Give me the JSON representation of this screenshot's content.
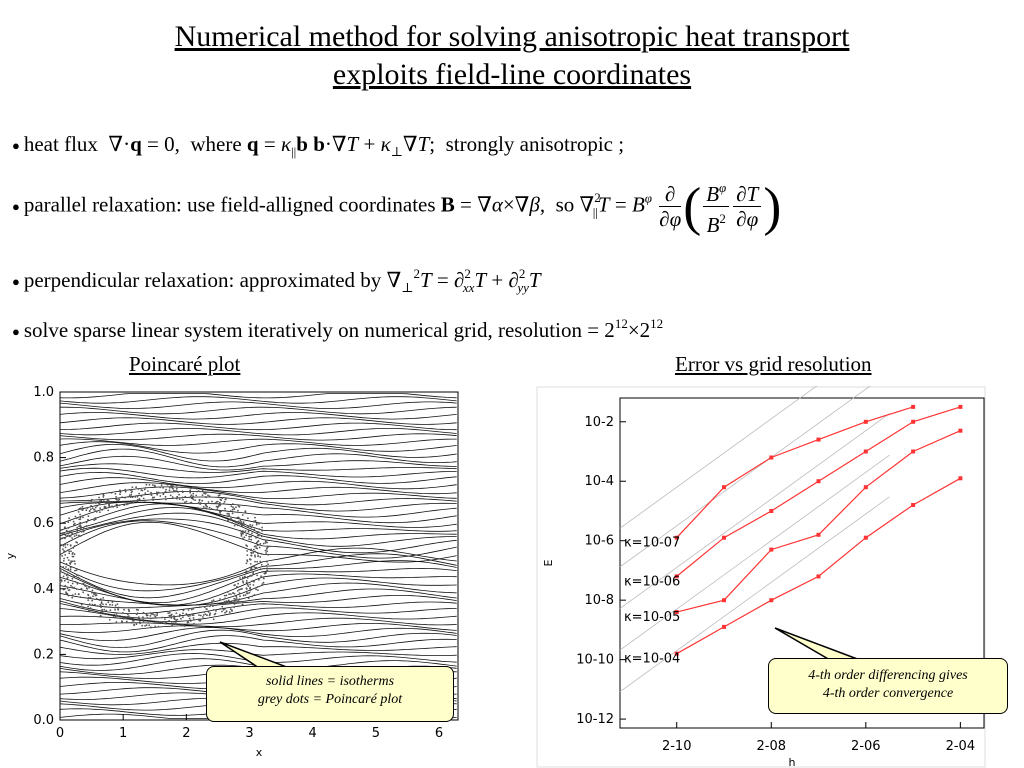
{
  "title": {
    "line1": "Numerical method for solving anisotropic heat transport",
    "line2": "exploits field-line coordinates"
  },
  "bullets": {
    "b1": {
      "text": "heat flux",
      "where": "where",
      "tail": "strongly anisotropic ;"
    },
    "b2": {
      "text": "parallel relaxation: use field-alligned coordinates",
      "so": "so"
    },
    "b3": {
      "text": "perpendicular relaxation: approximated by"
    },
    "b4": {
      "text": "solve sparse linear system iteratively on numerical grid, resolution = 2",
      "exp1": "12",
      "times": "×2",
      "exp2": "12"
    }
  },
  "captions": {
    "left": "Poincaré plot",
    "right": "Error vs grid resolution"
  },
  "callouts": {
    "left": [
      "solid lines = isotherms",
      "grey dots = Poincaré  plot"
    ],
    "right": [
      "4-th order differencing gives",
      "4-th order convergence"
    ]
  },
  "chart_data": [
    {
      "type": "line",
      "title": "",
      "xlabel": "x",
      "ylabel": "y",
      "xlim": [
        0,
        6.3
      ],
      "ylim": [
        0,
        1.0
      ],
      "xticks": [
        "0",
        "1",
        "2",
        "3",
        "4",
        "5",
        "6"
      ],
      "yticks": [
        "0.0",
        "0.2",
        "0.4",
        "0.6",
        "0.8",
        "1.0"
      ]
    },
    {
      "type": "line",
      "title": "",
      "xlabel": "h",
      "ylabel": "E",
      "x_scale": "log2",
      "y_scale": "log10",
      "xticks": [
        "2^-10",
        "2^-08",
        "2^-06",
        "2^-04"
      ],
      "yticks": [
        "10^-2",
        "10^-4",
        "10^-6",
        "10^-8",
        "10^-10",
        "10^-12"
      ],
      "x": [
        -10,
        -9,
        -8,
        -7,
        -6,
        -5
      ],
      "series": [
        {
          "name": "κ=10^-07",
          "x": [
            -10,
            -9,
            -8,
            -7,
            -6,
            -5
          ],
          "log10E": [
            -5.9,
            -4.2,
            -3.2,
            -2.6,
            -2.0,
            -1.5
          ]
        },
        {
          "name": "κ=10^-06",
          "x": [
            -10,
            -9,
            -8,
            -7,
            -6,
            -5,
            -4
          ],
          "log10E": [
            -7.2,
            -5.9,
            -5.0,
            -4.0,
            -3.0,
            -2.0,
            -1.5
          ]
        },
        {
          "name": "κ=10^-05",
          "x": [
            -10,
            -9,
            -8,
            -7,
            -6,
            -5,
            -4
          ],
          "log10E": [
            -8.4,
            -8.0,
            -6.3,
            -5.8,
            -4.2,
            -3.0,
            -2.3
          ]
        },
        {
          "name": "κ=10^-04",
          "x": [
            -10,
            -9,
            -8,
            -7,
            -6,
            -5,
            -4
          ],
          "log10E": [
            -9.8,
            -8.9,
            -8.0,
            -7.2,
            -5.9,
            -4.8,
            -3.9
          ]
        }
      ]
    }
  ]
}
